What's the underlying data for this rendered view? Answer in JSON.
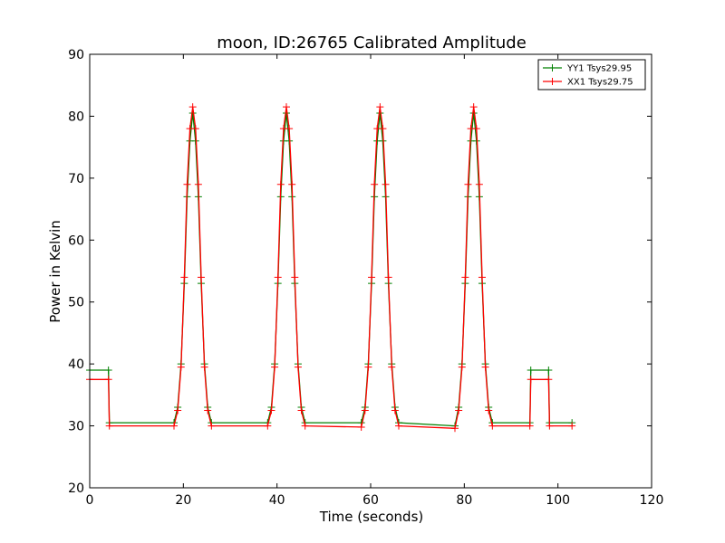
{
  "chart_data": {
    "type": "line",
    "title": "moon, ID:26765 Calibrated Amplitude",
    "xlabel": "Time (seconds)",
    "ylabel": "Power in Kelvin",
    "xlim": [
      0,
      120
    ],
    "ylim": [
      20,
      90
    ],
    "xticks": [
      0,
      20,
      40,
      60,
      80,
      100,
      120
    ],
    "yticks": [
      20,
      30,
      40,
      50,
      60,
      70,
      80,
      90
    ],
    "grid": false,
    "legend_position": "top-right",
    "marker": "+",
    "series": [
      {
        "name": "YY1 Tsys29.95",
        "color": "#008000",
        "x": [
          0,
          4,
          4.2,
          18,
          18.8,
          19.5,
          20.2,
          20.8,
          21.4,
          22,
          22.6,
          23.2,
          23.8,
          24.5,
          25.2,
          26,
          38,
          38.8,
          39.5,
          40.2,
          40.8,
          41.4,
          42,
          42.6,
          43.2,
          43.8,
          44.5,
          45.2,
          46,
          58,
          58.8,
          59.5,
          60.2,
          60.8,
          61.4,
          62,
          62.6,
          63.2,
          63.8,
          64.5,
          65.2,
          66,
          78,
          78.8,
          79.5,
          80.2,
          80.8,
          81.4,
          82,
          82.6,
          83.2,
          83.8,
          84.5,
          85.2,
          86,
          94,
          94.2,
          98,
          98.2,
          103
        ],
        "y": [
          39,
          39,
          30.5,
          30.5,
          33,
          40,
          53,
          67,
          76,
          80.5,
          76,
          67,
          53,
          40,
          33,
          30.5,
          30.5,
          33,
          40,
          53,
          67,
          76,
          80.5,
          76,
          67,
          53,
          40,
          33,
          30.5,
          30.5,
          33,
          40,
          53,
          67,
          76,
          80.5,
          76,
          67,
          53,
          40,
          33,
          30.5,
          30,
          33,
          40,
          53,
          67,
          76,
          80.5,
          76,
          67,
          53,
          40,
          33,
          30.5,
          30.5,
          39,
          39,
          30.5,
          30.5
        ]
      },
      {
        "name": "XX1 Tsys29.75",
        "color": "#ff0000",
        "x": [
          0,
          4,
          4.2,
          18,
          18.8,
          19.5,
          20.2,
          20.8,
          21.4,
          22,
          22.6,
          23.2,
          23.8,
          24.5,
          25.2,
          26,
          38,
          38.8,
          39.5,
          40.2,
          40.8,
          41.4,
          42,
          42.6,
          43.2,
          43.8,
          44.5,
          45.2,
          46,
          58,
          58.8,
          59.5,
          60.2,
          60.8,
          61.4,
          62,
          62.6,
          63.2,
          63.8,
          64.5,
          65.2,
          66,
          78,
          78.8,
          79.5,
          80.2,
          80.8,
          81.4,
          82,
          82.6,
          83.2,
          83.8,
          84.5,
          85.2,
          86,
          94,
          94.2,
          98,
          98.2,
          103
        ],
        "y": [
          37.5,
          37.5,
          30,
          30,
          32.5,
          39.5,
          54,
          69,
          78,
          81.5,
          78,
          69,
          54,
          39.5,
          32.5,
          30,
          30,
          32.5,
          39.5,
          54,
          69,
          78,
          81.5,
          78,
          69,
          54,
          39.5,
          32.5,
          30,
          29.8,
          32.5,
          39.5,
          54,
          69,
          78,
          81.5,
          78,
          69,
          54,
          39.5,
          32.5,
          30,
          29.6,
          32.5,
          39.5,
          54,
          69,
          78,
          81.5,
          78,
          69,
          54,
          39.5,
          32.5,
          30,
          30,
          37.5,
          37.5,
          30,
          30
        ]
      }
    ]
  }
}
